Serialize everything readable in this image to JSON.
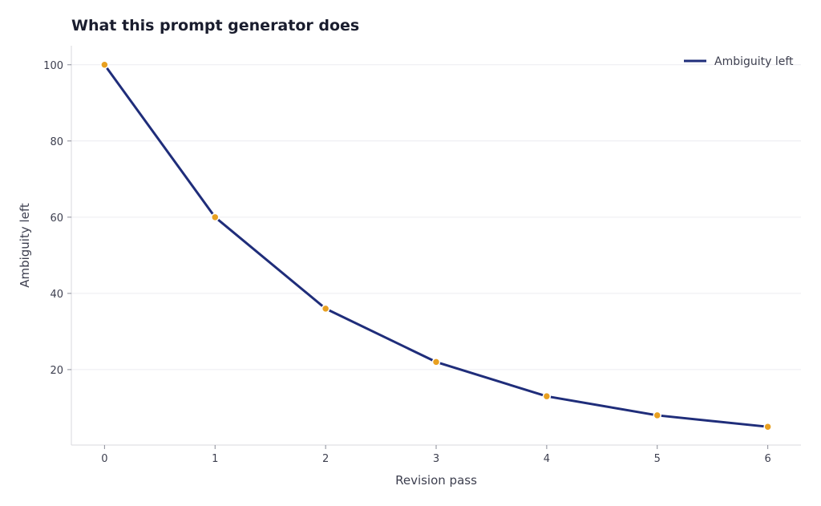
{
  "chart_data": {
    "type": "line",
    "title": "What this prompt generator does",
    "xlabel": "Revision pass",
    "ylabel": "Ambiguity left",
    "x": [
      0,
      1,
      2,
      3,
      4,
      5,
      6
    ],
    "series": [
      {
        "name": "Ambiguity left",
        "values": [
          100,
          60,
          36,
          22,
          13,
          8,
          5
        ]
      }
    ],
    "xticks": [
      0,
      1,
      2,
      3,
      4,
      5,
      6
    ],
    "yticks": [
      20,
      40,
      60,
      80,
      100
    ],
    "xlim": [
      -0.3,
      6.3
    ],
    "ylim": [
      0.2,
      105
    ],
    "grid": "horizontal",
    "legend": "top-right",
    "colors": {
      "line": "#1f2d7a",
      "marker": "#e8a020",
      "grid": "#ececf0",
      "axis": "#d8d8de"
    }
  }
}
